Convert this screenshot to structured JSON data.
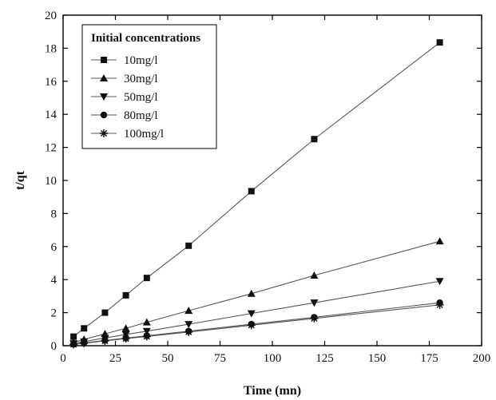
{
  "chart_data": {
    "type": "line",
    "title": "",
    "xlabel": "Time (mn)",
    "ylabel": "t/qt",
    "xlim": [
      0,
      200
    ],
    "ylim": [
      0,
      20
    ],
    "xticks": [
      0,
      25,
      50,
      75,
      100,
      125,
      150,
      175,
      200
    ],
    "yticks": [
      0,
      2,
      4,
      6,
      8,
      10,
      12,
      14,
      16,
      18,
      20
    ],
    "grid": false,
    "legend": {
      "title": "Initial concentrations",
      "placement": "top-left"
    },
    "x": [
      5,
      10,
      20,
      30,
      40,
      60,
      90,
      120,
      180
    ],
    "series": [
      {
        "name": "10mg/l",
        "marker": "square",
        "values": [
          0.55,
          1.05,
          2.0,
          3.05,
          4.1,
          6.05,
          9.35,
          12.5,
          18.35
        ]
      },
      {
        "name": "30mg/l",
        "marker": "triangle-up",
        "values": [
          0.2,
          0.38,
          0.72,
          1.05,
          1.42,
          2.12,
          3.15,
          4.25,
          6.32
        ]
      },
      {
        "name": "50mg/l",
        "marker": "triangle-down",
        "values": [
          0.14,
          0.25,
          0.47,
          0.68,
          0.88,
          1.3,
          1.95,
          2.6,
          3.9
        ]
      },
      {
        "name": "80mg/l",
        "marker": "circle",
        "values": [
          0.09,
          0.17,
          0.32,
          0.46,
          0.6,
          0.88,
          1.3,
          1.72,
          2.6
        ]
      },
      {
        "name": "100mg/l",
        "marker": "star",
        "values": [
          0.08,
          0.15,
          0.29,
          0.43,
          0.56,
          0.83,
          1.24,
          1.65,
          2.47
        ]
      }
    ],
    "colors": {
      "line": "#555555",
      "marker": "#111111",
      "axis": "#000000"
    }
  }
}
